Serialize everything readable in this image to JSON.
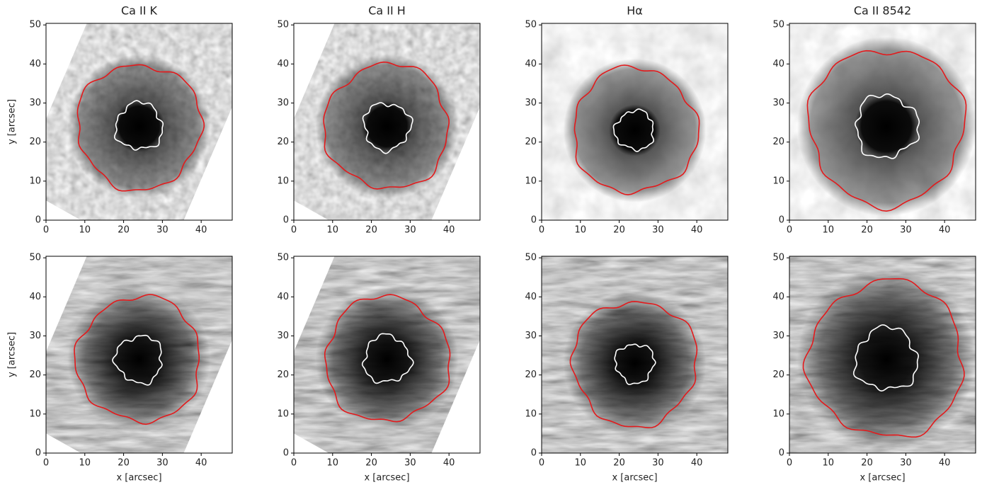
{
  "chart_data": [
    {
      "type": "image",
      "title": "Ca II K",
      "ylabel": "y [arcsec]",
      "xlim": [
        0,
        48
      ],
      "ylim": [
        0,
        50.4
      ],
      "xticks": [
        0,
        10,
        20,
        30,
        40
      ],
      "yticks": [
        0,
        10,
        20,
        30,
        40,
        50
      ]
    },
    {
      "type": "image",
      "title": "Ca II H",
      "xlim": [
        0,
        48
      ],
      "ylim": [
        0,
        50.4
      ],
      "xticks": [
        0,
        10,
        20,
        30,
        40
      ],
      "yticks": [
        0,
        10,
        20,
        30,
        40,
        50
      ]
    },
    {
      "type": "image",
      "title": "Hα",
      "xlim": [
        0,
        48
      ],
      "ylim": [
        0,
        50.4
      ],
      "xticks": [
        0,
        10,
        20,
        30,
        40
      ],
      "yticks": [
        0,
        10,
        20,
        30,
        40,
        50
      ]
    },
    {
      "type": "image",
      "title": "Ca II 8542",
      "xlim": [
        0,
        48
      ],
      "ylim": [
        0,
        50.4
      ],
      "xticks": [
        0,
        10,
        20,
        30,
        40
      ],
      "yticks": [
        0,
        10,
        20,
        30,
        40,
        50
      ]
    },
    {
      "type": "image",
      "xlabel": "x [arcsec]",
      "ylabel": "y [arcsec]",
      "xlim": [
        0,
        48
      ],
      "ylim": [
        0,
        50.4
      ],
      "xticks": [
        0,
        10,
        20,
        30,
        40
      ],
      "yticks": [
        0,
        10,
        20,
        30,
        40,
        50
      ]
    },
    {
      "type": "image",
      "xlabel": "x [arcsec]",
      "xlim": [
        0,
        48
      ],
      "ylim": [
        0,
        50.4
      ],
      "xticks": [
        0,
        10,
        20,
        30,
        40
      ],
      "yticks": [
        0,
        10,
        20,
        30,
        40,
        50
      ]
    },
    {
      "type": "image",
      "xlabel": "x [arcsec]",
      "xlim": [
        0,
        48
      ],
      "ylim": [
        0,
        50.4
      ],
      "xticks": [
        0,
        10,
        20,
        30,
        40
      ],
      "yticks": [
        0,
        10,
        20,
        30,
        40,
        50
      ]
    },
    {
      "type": "image",
      "xlabel": "x [arcsec]",
      "xlim": [
        0,
        48
      ],
      "ylim": [
        0,
        50.4
      ],
      "xticks": [
        0,
        10,
        20,
        30,
        40
      ],
      "yticks": [
        0,
        10,
        20,
        30,
        40,
        50
      ]
    }
  ]
}
